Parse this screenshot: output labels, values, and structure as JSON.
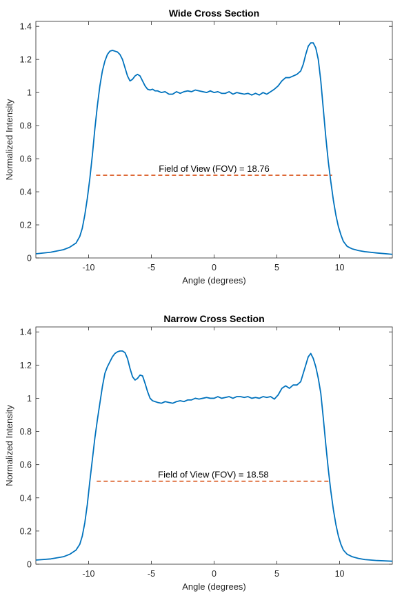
{
  "chart_data": [
    {
      "type": "line",
      "title": "Wide Cross Section",
      "xlabel": "Angle (degrees)",
      "ylabel": "Normalized Intensity",
      "xlim": [
        -14.2,
        14.2
      ],
      "ylim": [
        0,
        1.43
      ],
      "xticks": [
        -10,
        -5,
        0,
        5,
        10
      ],
      "xtick_labels": [
        "-10",
        "-5",
        "0",
        "5",
        "10"
      ],
      "yticks": [
        0,
        0.2,
        0.4,
        0.6,
        0.8,
        1,
        1.2,
        1.4
      ],
      "ytick_labels": [
        "0",
        "0.2",
        "0.4",
        "0.6",
        "0.8",
        "1",
        "1.2",
        "1.4"
      ],
      "grid": false,
      "line_color": "#0072BD",
      "fov_line_color": "#D95319",
      "annotation": "Field of View (FOV) = 18.76",
      "fov_line": {
        "x": [
          -9.4,
          9.4
        ],
        "y": 0.5
      },
      "series": [
        {
          "x": [
            -14.2,
            -13,
            -12,
            -11.5,
            -11,
            -10.7,
            -10.5,
            -10.3,
            -10.1,
            -9.9,
            -9.7,
            -9.5,
            -9.3,
            -9.1,
            -8.9,
            -8.7,
            -8.5,
            -8.3,
            -8.1,
            -7.9,
            -7.7,
            -7.5,
            -7.3,
            -7.1,
            -6.9,
            -6.7,
            -6.5,
            -6.3,
            -6.1,
            -5.9,
            -5.7,
            -5.5,
            -5.3,
            -5.1,
            -4.9,
            -4.7,
            -4.5,
            -4.2,
            -3.9,
            -3.6,
            -3.3,
            -3.0,
            -2.7,
            -2.4,
            -2.1,
            -1.8,
            -1.5,
            -1.2,
            -0.9,
            -0.6,
            -0.3,
            0.0,
            0.3,
            0.6,
            0.9,
            1.2,
            1.5,
            1.8,
            2.1,
            2.4,
            2.7,
            3.0,
            3.3,
            3.6,
            3.9,
            4.2,
            4.5,
            4.8,
            5.1,
            5.4,
            5.7,
            6.0,
            6.3,
            6.6,
            6.9,
            7.1,
            7.3,
            7.5,
            7.7,
            7.9,
            8.1,
            8.3,
            8.5,
            8.7,
            8.9,
            9.1,
            9.3,
            9.5,
            9.7,
            9.9,
            10.1,
            10.3,
            10.6,
            11,
            11.5,
            12,
            13,
            14.2
          ],
          "y": [
            0.025,
            0.035,
            0.05,
            0.065,
            0.09,
            0.13,
            0.18,
            0.26,
            0.36,
            0.48,
            0.62,
            0.78,
            0.92,
            1.04,
            1.13,
            1.19,
            1.23,
            1.25,
            1.255,
            1.25,
            1.245,
            1.23,
            1.2,
            1.15,
            1.1,
            1.07,
            1.08,
            1.1,
            1.11,
            1.1,
            1.07,
            1.04,
            1.02,
            1.015,
            1.02,
            1.01,
            1.01,
            1.0,
            1.005,
            0.99,
            0.99,
            1.005,
            0.995,
            1.005,
            1.01,
            1.005,
            1.015,
            1.01,
            1.005,
            1.0,
            1.01,
            1.0,
            1.005,
            0.995,
            0.995,
            1.005,
            0.99,
            1.0,
            0.995,
            0.99,
            0.995,
            0.985,
            0.995,
            0.985,
            1.0,
            0.99,
            1.005,
            1.02,
            1.04,
            1.07,
            1.09,
            1.09,
            1.1,
            1.11,
            1.13,
            1.17,
            1.23,
            1.28,
            1.3,
            1.3,
            1.27,
            1.2,
            1.07,
            0.9,
            0.73,
            0.58,
            0.46,
            0.35,
            0.26,
            0.19,
            0.14,
            0.1,
            0.07,
            0.055,
            0.045,
            0.038,
            0.03,
            0.022
          ]
        }
      ]
    },
    {
      "type": "line",
      "title": "Narrow Cross Section",
      "xlabel": "Angle (degrees)",
      "ylabel": "Normalized Intensity",
      "xlim": [
        -14.2,
        14.2
      ],
      "ylim": [
        0,
        1.43
      ],
      "xticks": [
        -10,
        -5,
        0,
        5,
        10
      ],
      "xtick_labels": [
        "-10",
        "-5",
        "0",
        "5",
        "10"
      ],
      "yticks": [
        0,
        0.2,
        0.4,
        0.6,
        0.8,
        1,
        1.2,
        1.4
      ],
      "ytick_labels": [
        "0",
        "0.2",
        "0.4",
        "0.6",
        "0.8",
        "1",
        "1.2",
        "1.4"
      ],
      "grid": false,
      "line_color": "#0072BD",
      "fov_line_color": "#D95319",
      "annotation": "Field of View (FOV) = 18.58",
      "fov_line": {
        "x": [
          -9.35,
          9.23
        ],
        "y": 0.5
      },
      "series": [
        {
          "x": [
            -14.2,
            -13,
            -12,
            -11.5,
            -11,
            -10.7,
            -10.5,
            -10.3,
            -10.1,
            -9.9,
            -9.7,
            -9.5,
            -9.3,
            -9.1,
            -8.9,
            -8.7,
            -8.5,
            -8.3,
            -8.1,
            -7.9,
            -7.7,
            -7.5,
            -7.3,
            -7.1,
            -6.9,
            -6.7,
            -6.5,
            -6.3,
            -6.1,
            -5.9,
            -5.7,
            -5.5,
            -5.3,
            -5.1,
            -4.9,
            -4.7,
            -4.5,
            -4.2,
            -3.9,
            -3.6,
            -3.3,
            -3.0,
            -2.7,
            -2.4,
            -2.1,
            -1.8,
            -1.5,
            -1.2,
            -0.9,
            -0.6,
            -0.3,
            0.0,
            0.3,
            0.6,
            0.9,
            1.2,
            1.5,
            1.8,
            2.1,
            2.4,
            2.7,
            3.0,
            3.3,
            3.6,
            3.9,
            4.2,
            4.5,
            4.8,
            5.1,
            5.4,
            5.7,
            6.0,
            6.3,
            6.6,
            6.9,
            7.1,
            7.3,
            7.5,
            7.7,
            7.9,
            8.1,
            8.3,
            8.5,
            8.7,
            8.9,
            9.1,
            9.3,
            9.5,
            9.7,
            9.9,
            10.1,
            10.3,
            10.6,
            11,
            11.5,
            12,
            13,
            14.2
          ],
          "y": [
            0.025,
            0.032,
            0.045,
            0.06,
            0.085,
            0.12,
            0.17,
            0.25,
            0.36,
            0.5,
            0.63,
            0.76,
            0.87,
            0.97,
            1.07,
            1.15,
            1.19,
            1.22,
            1.25,
            1.27,
            1.28,
            1.285,
            1.285,
            1.275,
            1.24,
            1.18,
            1.13,
            1.11,
            1.12,
            1.14,
            1.135,
            1.09,
            1.04,
            1.0,
            0.985,
            0.98,
            0.975,
            0.97,
            0.98,
            0.975,
            0.97,
            0.98,
            0.985,
            0.98,
            0.99,
            0.99,
            1.0,
            0.995,
            1.0,
            1.005,
            1.0,
            1.0,
            1.01,
            1.0,
            1.005,
            1.01,
            1.0,
            1.01,
            1.01,
            1.005,
            1.01,
            1.0,
            1.005,
            1.0,
            1.01,
            1.005,
            1.01,
            0.995,
            1.02,
            1.06,
            1.075,
            1.06,
            1.08,
            1.08,
            1.1,
            1.15,
            1.2,
            1.25,
            1.27,
            1.24,
            1.19,
            1.12,
            1.03,
            0.88,
            0.72,
            0.57,
            0.44,
            0.33,
            0.24,
            0.17,
            0.12,
            0.085,
            0.06,
            0.045,
            0.035,
            0.028,
            0.022,
            0.018
          ]
        }
      ]
    }
  ]
}
